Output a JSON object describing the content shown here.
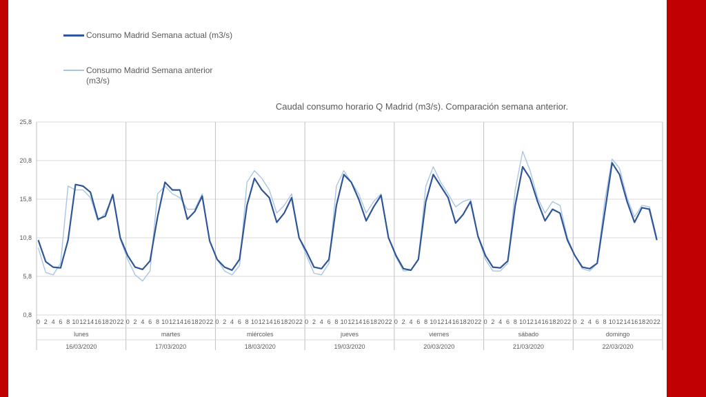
{
  "colors": {
    "frame": "#c00000",
    "current_series": "#2e5597",
    "previous_series": "#a9c4e4",
    "grid": "#d9d9d9",
    "axis_text": "#595959"
  },
  "chart_data": {
    "type": "line",
    "title": "Caudal consumo horario Q Madrid (m3/s). Comparación semana anterior.",
    "legend_position": "top-left",
    "grid": true,
    "ylim": [
      0.8,
      25.8
    ],
    "y_ticks": [
      "25,8",
      "20,8",
      "15,8",
      "10,8",
      "5,8",
      "0,8"
    ],
    "hour_labels": [
      "0",
      "2",
      "4",
      "6",
      "8",
      "10",
      "12",
      "14",
      "16",
      "18",
      "20",
      "22"
    ],
    "days": [
      {
        "name": "lunes",
        "date": "16/03/2020"
      },
      {
        "name": "martes",
        "date": "17/03/2020"
      },
      {
        "name": "miércoles",
        "date": "18/03/2020"
      },
      {
        "name": "jueves",
        "date": "19/03/2020"
      },
      {
        "name": "viernes",
        "date": "20/03/2020"
      },
      {
        "name": "sábado",
        "date": "21/03/2020"
      },
      {
        "name": "domingo",
        "date": "22/03/2020"
      }
    ],
    "series": [
      {
        "name": "Consumo Madrid Semana actual (m3/s)",
        "anchors_every_2h": [
          [
            10.5,
            7.7,
            7.0,
            6.9,
            10.5,
            17.7,
            17.5,
            16.7,
            13.2,
            13.6,
            16.4,
            10.8
          ],
          [
            8.5,
            7.0,
            6.7,
            7.8,
            13.5,
            18.0,
            17.0,
            17.0,
            13.2,
            14.2,
            16.2,
            10.4
          ],
          [
            8.0,
            7.0,
            6.6,
            8.0,
            15.0,
            18.5,
            17.0,
            16.0,
            12.8,
            14.0,
            16.0,
            10.8
          ],
          [
            9.0,
            7.0,
            6.8,
            8.0,
            15.0,
            19.0,
            18.0,
            15.8,
            13.0,
            14.8,
            16.3,
            10.8
          ],
          [
            8.5,
            6.8,
            6.6,
            8.0,
            15.5,
            19.0,
            17.5,
            16.0,
            12.7,
            13.8,
            15.5,
            11.0
          ],
          [
            8.5,
            7.0,
            6.9,
            7.8,
            15.0,
            20.0,
            18.5,
            15.5,
            13.0,
            14.5,
            14.0,
            10.5
          ],
          [
            8.5,
            7.0,
            6.8,
            7.5,
            14.0,
            20.5,
            19.0,
            15.5,
            12.8,
            14.7,
            14.5,
            10.5
          ]
        ]
      },
      {
        "name": "Consumo Madrid Semana anterior (m3/s)",
        "anchors_every_2h": [
          [
            9.5,
            6.3,
            6.0,
            7.5,
            17.5,
            17.0,
            17.0,
            16.0,
            13.0,
            14.0,
            16.2,
            10.6
          ],
          [
            8.0,
            6.0,
            5.2,
            6.5,
            16.5,
            17.5,
            16.5,
            16.0,
            14.5,
            14.5,
            16.5,
            10.3
          ],
          [
            8.0,
            6.5,
            6.0,
            7.2,
            18.0,
            19.5,
            18.5,
            17.0,
            14.0,
            15.0,
            16.5,
            10.8
          ],
          [
            8.5,
            6.2,
            6.0,
            7.5,
            17.5,
            19.5,
            18.0,
            16.5,
            14.0,
            15.5,
            16.5,
            10.8
          ],
          [
            8.3,
            6.5,
            6.6,
            8.0,
            17.5,
            20.0,
            18.0,
            16.5,
            14.8,
            15.5,
            15.8,
            11.0
          ],
          [
            8.0,
            6.5,
            6.5,
            7.5,
            17.0,
            22.0,
            19.5,
            16.0,
            14.0,
            15.5,
            15.0,
            10.8
          ],
          [
            8.5,
            6.8,
            6.5,
            7.5,
            15.5,
            21.0,
            19.8,
            16.0,
            13.5,
            15.0,
            14.8,
            10.8
          ]
        ]
      }
    ]
  }
}
